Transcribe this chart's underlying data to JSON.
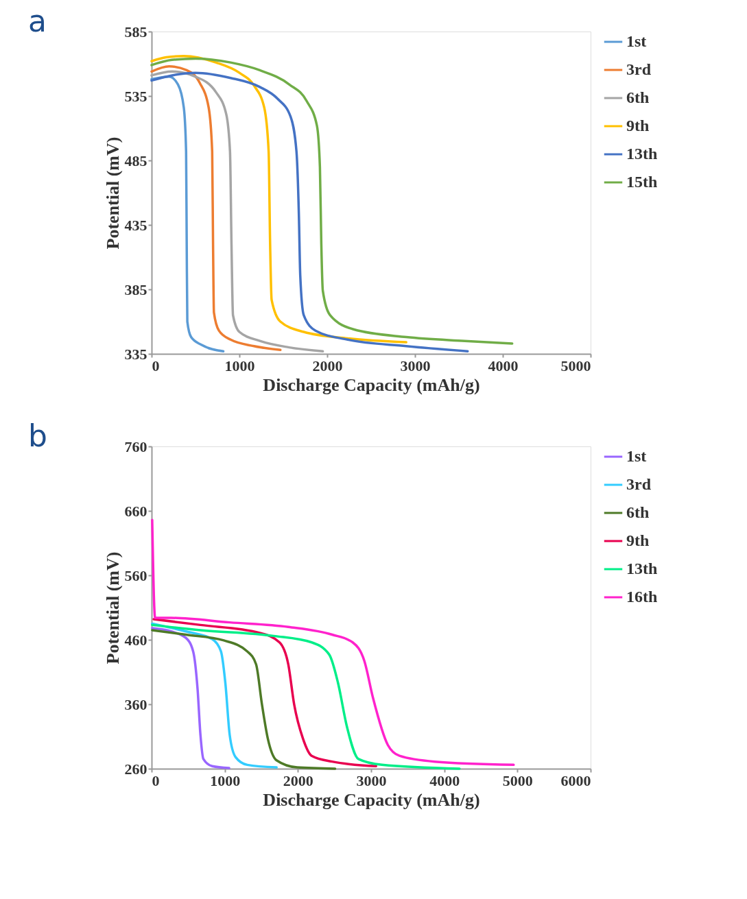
{
  "chart_data": [
    {
      "type": "line",
      "title": "a",
      "xlabel": "Discharge Capacity (mAh/g)",
      "ylabel": "Potential (mV)",
      "xlim": [
        0,
        5000
      ],
      "xticks": [
        0,
        1000,
        2000,
        3000,
        4000,
        5000
      ],
      "ylim": [
        335,
        585
      ],
      "yticks": [
        335,
        385,
        435,
        485,
        535,
        585
      ],
      "grid": false,
      "legend": "right",
      "series": [
        {
          "name": "1st",
          "color": "#5b9bd5",
          "x": [
            0,
            200,
            300,
            367,
            393,
            400,
            407,
            450,
            567,
            817
          ],
          "values": [
            548,
            550,
            544,
            526,
            492,
            420,
            360,
            348,
            342,
            337
          ]
        },
        {
          "name": "3rd",
          "color": "#ed7d31",
          "x": [
            0,
            200,
            400,
            550,
            650,
            690,
            700,
            710,
            767,
            900,
            1167,
            1467
          ],
          "values": [
            554,
            558,
            555,
            545,
            526,
            492,
            420,
            367,
            353,
            346,
            341,
            338
          ]
        },
        {
          "name": "6th",
          "color": "#a5a5a5",
          "x": [
            0,
            233,
            500,
            733,
            850,
            893,
            910,
            927,
            1000,
            1233,
            1567,
            1950
          ],
          "values": [
            551,
            554,
            550,
            538,
            521,
            492,
            420,
            365,
            352,
            345,
            340,
            337
          ]
        },
        {
          "name": "9th",
          "color": "#ffc000",
          "x": [
            0,
            167,
            367,
            733,
            1000,
            1167,
            1283,
            1333,
            1350,
            1367,
            1467,
            1733,
            2233,
            2900
          ],
          "values": [
            562,
            565,
            566,
            561,
            553,
            543,
            526,
            492,
            420,
            377,
            360,
            352,
            347,
            344
          ]
        },
        {
          "name": "13th",
          "color": "#4472c4",
          "x": [
            0,
            233,
            500,
            900,
            1233,
            1433,
            1583,
            1650,
            1677,
            1693,
            1733,
            1867,
            2233,
            2900,
            3600
          ],
          "values": [
            547,
            551,
            553,
            549,
            542,
            533,
            519,
            492,
            444,
            396,
            365,
            353,
            346,
            341,
            337
          ]
        },
        {
          "name": "15th",
          "color": "#70ad47",
          "x": [
            0,
            233,
            500,
            900,
            1233,
            1567,
            1767,
            1883,
            1917,
            1933,
            1950,
            2033,
            2300,
            2900,
            3567,
            4107
          ],
          "values": [
            559,
            563,
            564,
            561,
            555,
            544,
            531,
            512,
            480,
            420,
            384,
            365,
            354,
            348,
            345,
            343
          ]
        }
      ]
    },
    {
      "type": "line",
      "title": "b",
      "xlabel": "Discharge Capacity (mAh/g)",
      "ylabel": "Potential (mV)",
      "xlim": [
        0,
        6000
      ],
      "xticks": [
        0,
        1000,
        2000,
        3000,
        4000,
        5000,
        6000
      ],
      "ylim": [
        260,
        760
      ],
      "yticks": [
        260,
        360,
        460,
        560,
        660,
        760
      ],
      "grid": false,
      "legend": "right",
      "series": [
        {
          "name": "1st",
          "color": "#9966ff",
          "x": [
            8,
            268,
            468,
            568,
            628,
            668,
            708,
            828,
            1060
          ],
          "values": [
            478,
            473,
            463,
            442,
            384,
            312,
            275,
            264,
            261
          ]
        },
        {
          "name": "3rd",
          "color": "#33ccff",
          "x": [
            8,
            468,
            828,
            948,
            1008,
            1068,
            1148,
            1308,
            1708
          ],
          "values": [
            485,
            473,
            461,
            442,
            393,
            312,
            278,
            266,
            262
          ]
        },
        {
          "name": "6th",
          "color": "#4e7a27",
          "x": [
            8,
            468,
            988,
            1308,
            1428,
            1508,
            1588,
            1708,
            1988,
            2508
          ],
          "values": [
            475,
            468,
            459,
            442,
            422,
            360,
            307,
            273,
            262,
            260
          ]
        },
        {
          "name": "9th",
          "color": "#e8004f",
          "x": [
            28,
            668,
            1468,
            1748,
            1868,
            1948,
            2068,
            2188,
            2468,
            3068
          ],
          "values": [
            492,
            483,
            471,
            456,
            422,
            360,
            307,
            280,
            271,
            264
          ]
        },
        {
          "name": "13th",
          "color": "#00ee88",
          "x": [
            8,
            668,
            1668,
            2188,
            2428,
            2548,
            2668,
            2828,
            3148,
            4208
          ],
          "values": [
            483,
            475,
            466,
            456,
            437,
            393,
            326,
            275,
            266,
            260
          ]
        },
        {
          "name": "16th",
          "color": "#ff22cc",
          "x": [
            8,
            48,
            268,
            1068,
            1868,
            2468,
            2748,
            2908,
            3028,
            3228,
            3388,
            3868,
            4948
          ],
          "values": [
            646,
            494,
            494,
            487,
            480,
            468,
            456,
            427,
            369,
            297,
            280,
            271,
            266
          ]
        }
      ]
    }
  ]
}
